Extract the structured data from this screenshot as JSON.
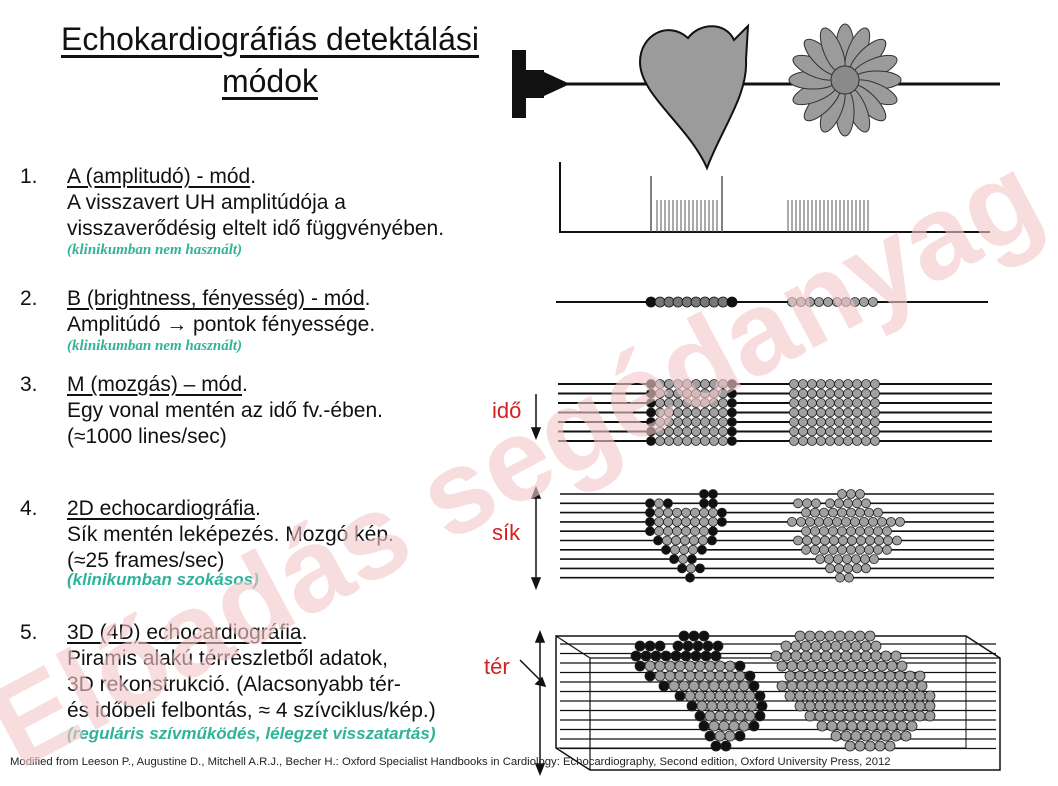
{
  "title": {
    "line1": "Echokardiográfiás detektálási",
    "line2": "módok"
  },
  "items": [
    {
      "num": "1.",
      "head": "A (amplitudó) - mód",
      "line2": "A visszavert UH amplitúdója a",
      "line3": "visszaverődésig eltelt idő függvényében.",
      "note": "(klinikumban nem használt)"
    },
    {
      "num": "2.",
      "head": "B (brightness, fényesség) - mód",
      "line2": "Amplitúdó → pontok fényessége.",
      "note": "(klinikumban nem használt)"
    },
    {
      "num": "3.",
      "head": "M (mozgás) – mód",
      "line2": "Egy vonal mentén az idő fv.-ében.",
      "line3": "(≈1000 lines/sec)"
    },
    {
      "num": "4.",
      "head": "2D echocardiográfia",
      "line2": "Sík mentén leképezés. Mozgó kép.",
      "line3": "(≈25 frames/sec)",
      "note": "(klinikumban szokásos)"
    },
    {
      "num": "5.",
      "head": "3D (4D) echocardiográfia",
      "line2": "Piramis alakú térrészletből adatok,",
      "line3": "3D rekonstrukció. (Alacsonyabb tér-",
      "line4": "és időbeli felbontás, ≈ 4 szívciklus/kép.)",
      "note": "(reguláris szívműködés, lélegzet visszatartás)"
    }
  ],
  "side_labels": {
    "ido": "idő",
    "sik": "sík",
    "ter": "tér"
  },
  "watermark": "Előadás segédanyag",
  "credit": "Modified from Leeson P., Augustine D., Mitchell A.R.J., Becher H.: Oxford Specialist Handbooks in Cardiology: Echocardiography, Second edition, Oxford University Press, 2012",
  "colors": {
    "accent_red": "#d42020",
    "note_green": "#2fb39a",
    "watermark": "#f2c8c8",
    "dot_grey": "#a0a0a0"
  }
}
